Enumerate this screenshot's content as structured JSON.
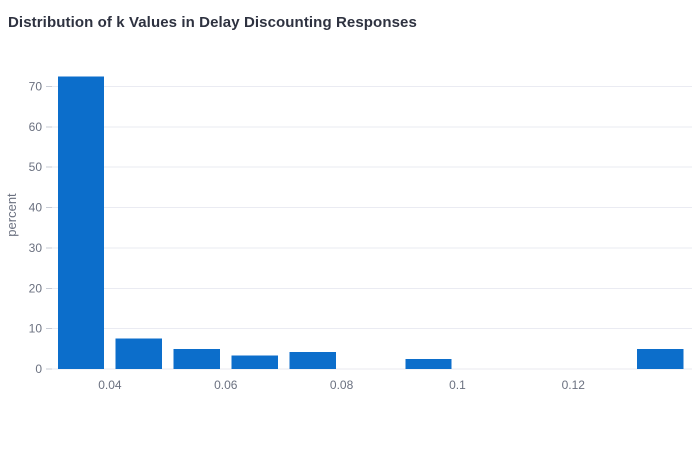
{
  "title": "Distribution of k Values in Delay Discounting Responses",
  "chart_data": {
    "type": "bar",
    "subtype": "histogram",
    "title": "Distribution of k Values in Delay Discounting Responses",
    "xlabel": "",
    "ylabel": "percent",
    "orientation": "vertical",
    "bin_width": 0.01,
    "bar_fraction_of_bin": 0.8,
    "bins": [
      {
        "x0": 0.03,
        "x1": 0.04,
        "percent": 72.5
      },
      {
        "x0": 0.04,
        "x1": 0.05,
        "percent": 7.5
      },
      {
        "x0": 0.05,
        "x1": 0.06,
        "percent": 5.0
      },
      {
        "x0": 0.06,
        "x1": 0.07,
        "percent": 3.33
      },
      {
        "x0": 0.07,
        "x1": 0.08,
        "percent": 4.17
      },
      {
        "x0": 0.08,
        "x1": 0.09,
        "percent": 0
      },
      {
        "x0": 0.09,
        "x1": 0.1,
        "percent": 2.5
      },
      {
        "x0": 0.1,
        "x1": 0.11,
        "percent": 0
      },
      {
        "x0": 0.11,
        "x1": 0.12,
        "percent": 0
      },
      {
        "x0": 0.12,
        "x1": 0.13,
        "percent": 0
      },
      {
        "x0": 0.13,
        "x1": 0.14,
        "percent": 5.0
      }
    ],
    "x_tick_values": [
      0.04,
      0.06,
      0.08,
      0.1,
      0.12
    ],
    "x_tick_labels": [
      "0.04",
      "0.06",
      "0.08",
      "0.1",
      "0.12"
    ],
    "y_tick_values": [
      0,
      10,
      20,
      30,
      40,
      50,
      60,
      70
    ],
    "y_tick_labels": [
      "0",
      "10",
      "20",
      "30",
      "40",
      "50",
      "60",
      "70"
    ],
    "xlim": [
      0.03,
      0.1405
    ],
    "ylim": [
      0,
      76.3
    ],
    "grid": "horizontal-only",
    "legend": "none",
    "colors": {
      "bar": "#0c6ecb",
      "grid": "#eaebf2",
      "axis_line": "#e8e9ef",
      "tick": "#c9cdd6",
      "tick_label": "#6b7180",
      "axis_title": "#6b7180",
      "title": "#2e3240",
      "background": "#ffffff"
    }
  }
}
